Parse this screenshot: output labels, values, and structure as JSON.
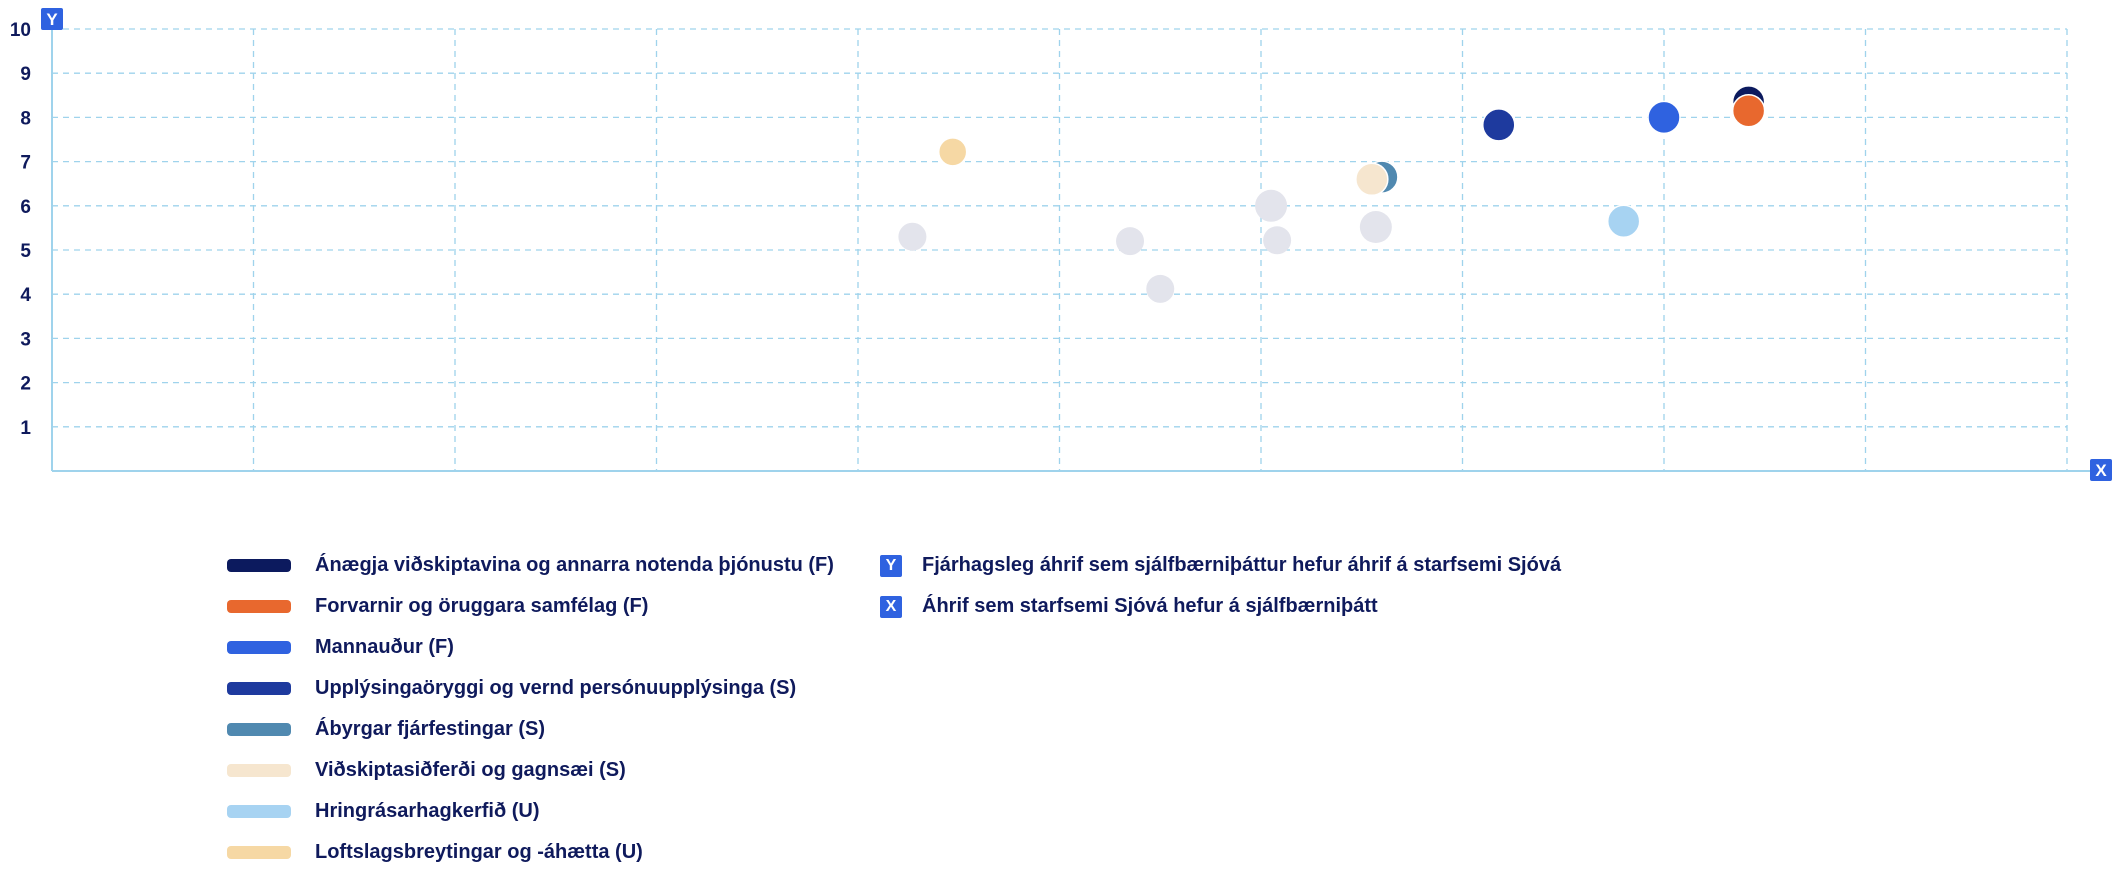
{
  "chart_data": {
    "type": "scatter",
    "x_axis": {
      "badge": "X",
      "range": [
        0,
        10
      ],
      "ticks": [
        "1",
        "2",
        "3",
        "4",
        "5",
        "6",
        "7",
        "8",
        "9",
        "10"
      ]
    },
    "y_axis": {
      "badge": "Y",
      "range": [
        0,
        10
      ],
      "ticks": [
        "1",
        "2",
        "3",
        "4",
        "5",
        "6",
        "7",
        "8",
        "9",
        "10"
      ]
    },
    "grid": true,
    "series": [
      {
        "name": "Ánægja viðskiptavina og annarra notenda þjónustu (F)",
        "color": "#0c1a5e",
        "points": [
          {
            "x": 8.42,
            "y": 8.35
          }
        ]
      },
      {
        "name": "Forvarnir og öruggara samfélag (F)",
        "color": "#e8682e",
        "points": [
          {
            "x": 8.42,
            "y": 8.15
          }
        ]
      },
      {
        "name": "Mannauður (F)",
        "color": "#2f62e0",
        "points": [
          {
            "x": 8.0,
            "y": 8.0
          }
        ]
      },
      {
        "name": "Upplýsingaöryggi og vernd persónuupplýsinga (S)",
        "color": "#1e3a9e",
        "points": [
          {
            "x": 7.18,
            "y": 7.83
          }
        ]
      },
      {
        "name": "Ábyrgar fjárfestingar (S)",
        "color": "#5089b0",
        "points": [
          {
            "x": 6.6,
            "y": 6.65
          }
        ]
      },
      {
        "name": "Viðskiptasiðferði og gagnsæi (S)",
        "color": "#f6e6cf",
        "points": [
          {
            "x": 6.55,
            "y": 6.6
          }
        ]
      },
      {
        "name": "Hringrásarhagkerfið (U)",
        "color": "#a7d3f2",
        "points": [
          {
            "x": 7.8,
            "y": 5.65
          }
        ]
      },
      {
        "name": "Loftslagsbreytingar og -áhætta (U)",
        "color": "#f6d8a4",
        "points": [
          {
            "x": 4.47,
            "y": 7.22
          }
        ]
      }
    ],
    "other_points": {
      "color": "#e3e4ec",
      "points": [
        {
          "x": 4.27,
          "y": 5.3
        },
        {
          "x": 5.35,
          "y": 5.2
        },
        {
          "x": 5.5,
          "y": 4.12
        },
        {
          "x": 6.05,
          "y": 6.0
        },
        {
          "x": 6.08,
          "y": 5.22
        },
        {
          "x": 6.57,
          "y": 5.52
        }
      ]
    },
    "axis_legend": [
      {
        "badge": "Y",
        "label": "Fjárhagsleg áhrif sem sjálfbærniþáttur hefur áhrif á starfsemi Sjóvá"
      },
      {
        "badge": "X",
        "label": "Áhrif sem starfsemi Sjóvá hefur á sjálfbærniþátt"
      }
    ]
  }
}
